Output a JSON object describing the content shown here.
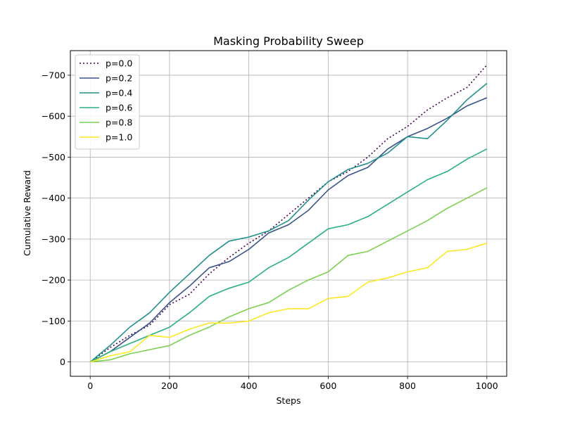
{
  "chart_data": {
    "type": "line",
    "title": "Masking Probability Sweep",
    "xlabel": "Steps",
    "ylabel": "Cumulative Reward",
    "xlim": [
      -50,
      1050
    ],
    "ylim": [
      35,
      -760
    ],
    "y_axis_inverted": true,
    "xticks": [
      0,
      200,
      400,
      600,
      800,
      1000
    ],
    "yticks": [
      0,
      -100,
      -200,
      -300,
      -400,
      -500,
      -600,
      -700
    ],
    "xtick_labels": [
      "0",
      "200",
      "400",
      "600",
      "800",
      "1000"
    ],
    "ytick_labels": [
      "0",
      "−100",
      "−200",
      "−300",
      "−400",
      "−500",
      "−600",
      "−700"
    ],
    "grid": true,
    "legend_position": "top-left",
    "series": [
      {
        "name": "p=0.0",
        "color": "#440154",
        "style": "dotted",
        "x": [
          0,
          50,
          100,
          150,
          200,
          250,
          300,
          350,
          400,
          450,
          500,
          550,
          600,
          650,
          700,
          750,
          800,
          850,
          900,
          950,
          1000
        ],
        "y": [
          0,
          -35,
          -65,
          -90,
          -140,
          -165,
          -215,
          -255,
          -290,
          -320,
          -360,
          -400,
          -440,
          -465,
          -500,
          -545,
          -575,
          -615,
          -645,
          -670,
          -725
        ]
      },
      {
        "name": "p=0.2",
        "color": "#3b528b",
        "style": "solid",
        "x": [
          0,
          50,
          100,
          150,
          200,
          250,
          300,
          350,
          400,
          450,
          500,
          550,
          600,
          650,
          700,
          750,
          800,
          850,
          900,
          950,
          1000
        ],
        "y": [
          0,
          -25,
          -60,
          -95,
          -145,
          -185,
          -230,
          -245,
          -275,
          -315,
          -335,
          -370,
          -420,
          -455,
          -475,
          -520,
          -550,
          -570,
          -595,
          -625,
          -645
        ]
      },
      {
        "name": "p=0.4",
        "color": "#21918c",
        "style": "solid",
        "x": [
          0,
          50,
          100,
          150,
          200,
          250,
          300,
          350,
          400,
          450,
          500,
          550,
          600,
          650,
          700,
          750,
          800,
          850,
          900,
          950,
          1000
        ],
        "y": [
          0,
          -40,
          -85,
          -120,
          -170,
          -215,
          -260,
          -295,
          -305,
          -320,
          -345,
          -395,
          -440,
          -470,
          -485,
          -510,
          -550,
          -545,
          -590,
          -640,
          -680
        ]
      },
      {
        "name": "p=0.6",
        "color": "#2ab07f",
        "style": "solid",
        "x": [
          0,
          50,
          100,
          150,
          200,
          250,
          300,
          350,
          400,
          450,
          500,
          550,
          600,
          650,
          700,
          750,
          800,
          850,
          900,
          950,
          1000
        ],
        "y": [
          0,
          -25,
          -45,
          -65,
          -85,
          -120,
          -160,
          -180,
          -195,
          -230,
          -255,
          -290,
          -325,
          -335,
          -355,
          -385,
          -415,
          -445,
          -465,
          -495,
          -520
        ]
      },
      {
        "name": "p=0.8",
        "color": "#7ad151",
        "style": "solid",
        "x": [
          0,
          50,
          100,
          150,
          200,
          250,
          300,
          350,
          400,
          450,
          500,
          550,
          600,
          650,
          700,
          750,
          800,
          850,
          900,
          950,
          1000
        ],
        "y": [
          0,
          -5,
          -20,
          -30,
          -40,
          -65,
          -85,
          -110,
          -130,
          -145,
          -175,
          -200,
          -220,
          -260,
          -270,
          -295,
          -320,
          -345,
          -375,
          -400,
          -425
        ]
      },
      {
        "name": "p=1.0",
        "color": "#fde725",
        "style": "solid",
        "x": [
          0,
          50,
          100,
          150,
          200,
          250,
          300,
          350,
          400,
          450,
          500,
          550,
          600,
          650,
          700,
          750,
          800,
          850,
          900,
          950,
          1000
        ],
        "y": [
          0,
          -15,
          -25,
          -65,
          -60,
          -80,
          -95,
          -95,
          -100,
          -120,
          -130,
          -130,
          -155,
          -160,
          -195,
          -205,
          -220,
          -230,
          -270,
          -275,
          -290
        ]
      }
    ]
  }
}
